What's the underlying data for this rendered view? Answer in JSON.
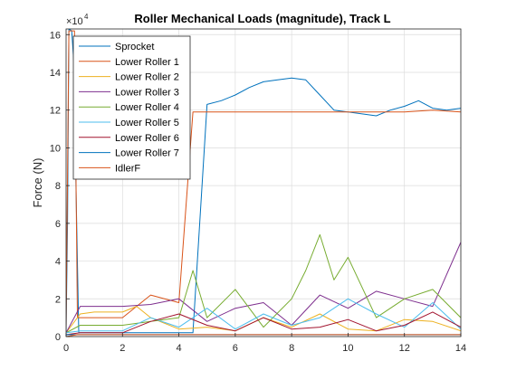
{
  "chart_data": {
    "type": "line",
    "title": "Roller Mechanical Loads (magnitude), Track L",
    "xlabel": "",
    "ylabel": "Force (N)",
    "xlim": [
      0,
      14
    ],
    "ylim": [
      0,
      16.3
    ],
    "y_multiplier": {
      "base": "×10",
      "exponent": "4"
    },
    "x_ticks": [
      "0",
      "2",
      "4",
      "6",
      "8",
      "10",
      "12",
      "14"
    ],
    "y_ticks": [
      "0",
      "2",
      "4",
      "6",
      "8",
      "10",
      "12",
      "14",
      "16"
    ],
    "grid": true,
    "legend_position": "top-left",
    "series": [
      {
        "name": "Sprocket",
        "color": "#0072BD",
        "x": [
          0,
          0.05,
          0.1,
          0.2,
          0.3,
          0.35,
          0.45,
          4.5,
          5,
          5.5,
          6,
          6.5,
          7,
          7.5,
          8,
          8.5,
          9,
          9.5,
          10,
          10.5,
          11,
          11.5,
          12,
          12.5,
          13,
          13.5,
          14
        ],
        "y": [
          0.3,
          6,
          16.3,
          16.2,
          14,
          8,
          0.2,
          0.2,
          12.3,
          12.5,
          12.8,
          13.2,
          13.5,
          13.6,
          13.7,
          13.6,
          12.8,
          12,
          11.9,
          11.8,
          11.7,
          12,
          12.2,
          12.5,
          12.1,
          12.0,
          12.1
        ]
      },
      {
        "name": "Lower Roller 1",
        "color": "#D95319",
        "x": [
          0,
          0.1,
          0.3,
          0.4,
          2,
          3,
          4,
          4.5,
          5,
          6,
          7,
          8,
          9,
          10,
          11,
          12,
          13,
          14
        ],
        "y": [
          0.5,
          16.2,
          16.2,
          1.0,
          1.0,
          2.2,
          1.8,
          11.9,
          11.9,
          11.9,
          11.9,
          11.9,
          11.9,
          11.9,
          11.9,
          11.9,
          12.0,
          11.9
        ]
      },
      {
        "name": "Lower Roller 2",
        "color": "#EDB120",
        "x": [
          0,
          0.5,
          1,
          2,
          2.5,
          3,
          4,
          5,
          6,
          7,
          8,
          9,
          10,
          11,
          12,
          13,
          14
        ],
        "y": [
          0.2,
          1.2,
          1.3,
          1.3,
          1.6,
          1.0,
          0.4,
          0.5,
          0.3,
          1.0,
          0.5,
          1.2,
          0.4,
          0.3,
          0.9,
          0.8,
          0.3
        ]
      },
      {
        "name": "Lower Roller 3",
        "color": "#7E2F8E",
        "x": [
          0,
          0.5,
          1,
          2,
          3,
          4,
          5,
          6,
          7,
          8,
          9,
          10,
          11,
          12,
          13,
          14
        ],
        "y": [
          0.2,
          1.6,
          1.6,
          1.6,
          1.7,
          2.0,
          0.8,
          1.5,
          1.8,
          0.6,
          2.2,
          1.5,
          2.4,
          2.0,
          1.6,
          5.0
        ]
      },
      {
        "name": "Lower Roller 4",
        "color": "#77AC30",
        "x": [
          0,
          0.5,
          2,
          3,
          4,
          4.5,
          5,
          6,
          7,
          8,
          8.5,
          9,
          9.5,
          10,
          11,
          12,
          13,
          14
        ],
        "y": [
          0.2,
          0.6,
          0.6,
          0.8,
          1.0,
          3.5,
          1.0,
          2.5,
          0.5,
          2.0,
          3.5,
          5.4,
          3.0,
          4.2,
          1.0,
          2.0,
          2.5,
          1.0
        ]
      },
      {
        "name": "Lower Roller 5",
        "color": "#4DBEEE",
        "x": [
          0,
          0.5,
          2,
          3,
          4,
          5,
          6,
          7,
          8,
          9,
          10,
          11,
          12,
          13,
          14
        ],
        "y": [
          0.2,
          0.3,
          0.3,
          1.0,
          0.5,
          1.5,
          0.4,
          1.2,
          0.6,
          1.0,
          2.0,
          1.2,
          0.5,
          1.8,
          0.4
        ]
      },
      {
        "name": "Lower Roller 6",
        "color": "#A2142F",
        "x": [
          0,
          0.5,
          2,
          3,
          4,
          5,
          6,
          7,
          8,
          9,
          10,
          11,
          12,
          13,
          14
        ],
        "y": [
          0.1,
          0.2,
          0.2,
          0.8,
          1.2,
          0.6,
          0.3,
          1.0,
          0.4,
          0.5,
          0.9,
          0.3,
          0.6,
          1.3,
          0.5
        ]
      },
      {
        "name": "Lower Roller 7",
        "color": "#0072BD",
        "x": [
          0,
          0.5,
          2,
          4,
          6,
          8,
          10,
          12,
          14
        ],
        "y": [
          0.1,
          0.1,
          0.1,
          0.1,
          0.1,
          0.1,
          0.1,
          0.1,
          0.1
        ]
      },
      {
        "name": "IdlerF",
        "color": "#D95319",
        "x": [
          0,
          0.4,
          2,
          4,
          6,
          8,
          10,
          12,
          14
        ],
        "y": [
          0.0,
          0.1,
          0.1,
          0.1,
          0.1,
          0.1,
          0.1,
          0.1,
          0.1
        ]
      }
    ]
  }
}
